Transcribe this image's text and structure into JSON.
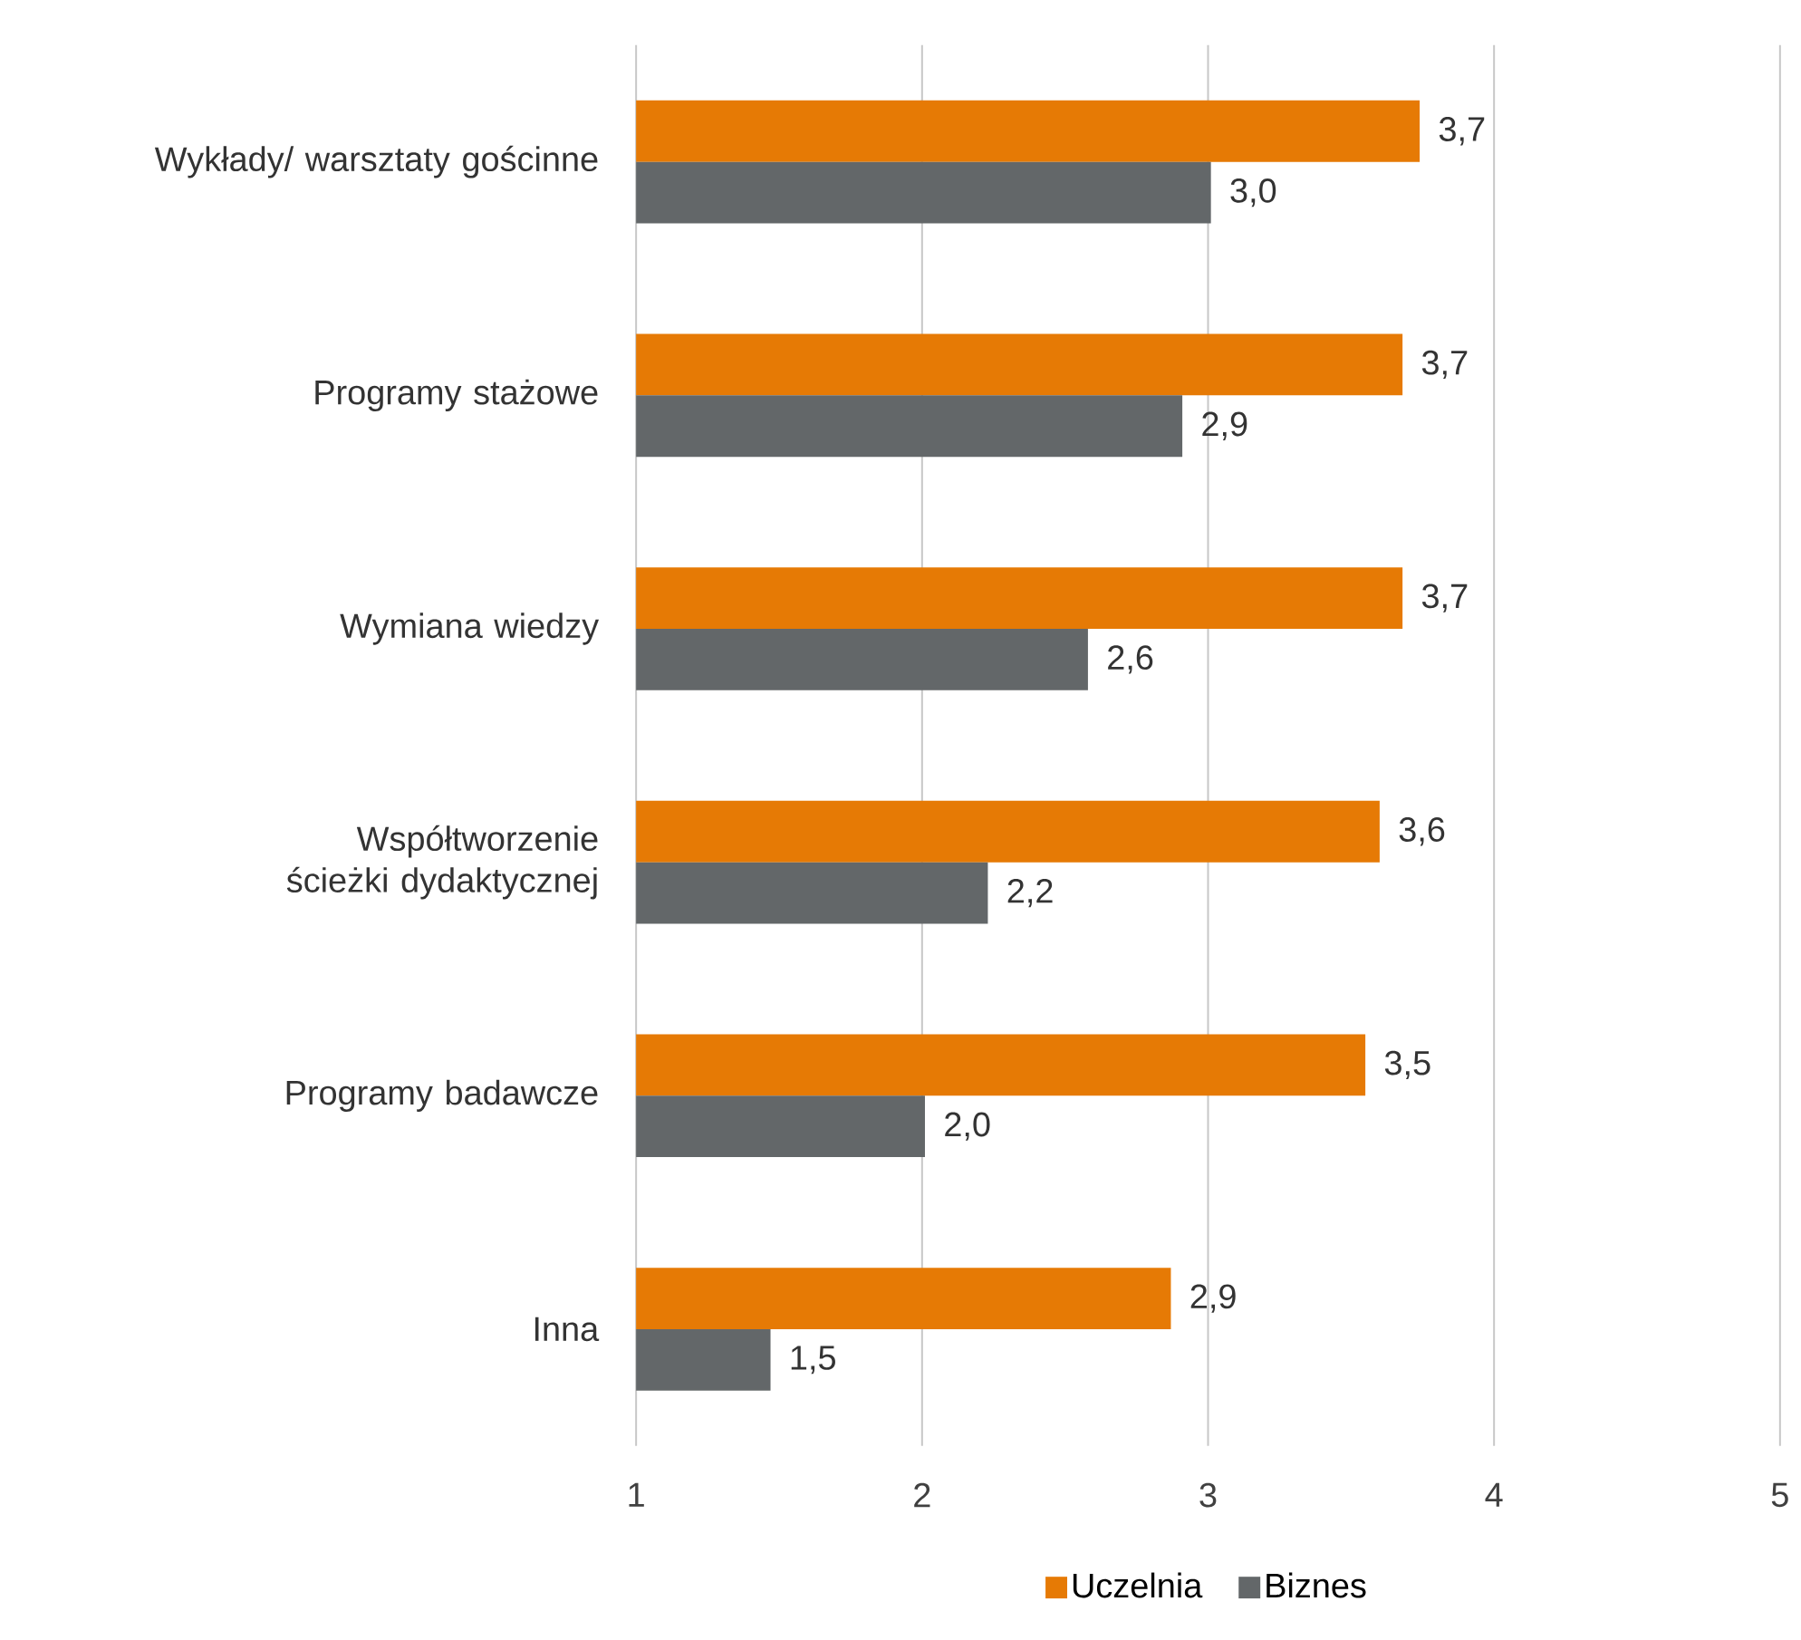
{
  "chart_data": {
    "type": "bar",
    "orientation": "horizontal",
    "categories": [
      "Wykłady/ warsztaty gościnne",
      "Programy stażowe",
      "Wymiana wiedzy",
      "Współtworzenie ścieżki dydaktycznej",
      "Programy badawcze",
      "Inna"
    ],
    "series": [
      {
        "name": "Uczelnia",
        "color": "#e67a05",
        "values": [
          3.74,
          3.68,
          3.68,
          3.6,
          3.55,
          2.87
        ],
        "value_labels": [
          "3,7",
          "3,7",
          "3,7",
          "3,6",
          "3,5",
          "2,9"
        ]
      },
      {
        "name": "Biznes",
        "color": "#636769",
        "values": [
          3.01,
          2.91,
          2.58,
          2.23,
          2.01,
          1.47
        ],
        "value_labels": [
          "3,0",
          "2,9",
          "2,6",
          "2,2",
          "2,0",
          "1,5"
        ]
      }
    ],
    "xlim": [
      1,
      5
    ],
    "xticks": [
      1,
      2,
      3,
      4,
      5
    ],
    "grid": "x",
    "legend": "bottom"
  }
}
